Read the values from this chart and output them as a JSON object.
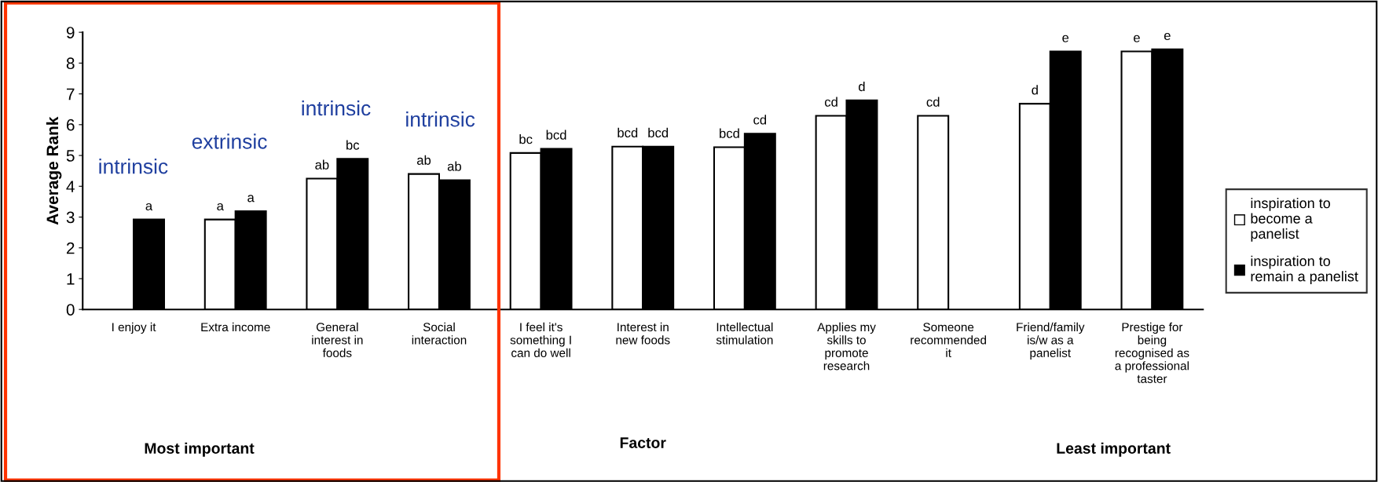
{
  "chart_data": {
    "type": "bar",
    "xlabel": "Factor",
    "ylabel": "Average Rank",
    "categories": [
      "I enjoy it",
      "Extra income",
      "General\ninterest in\nfoods",
      "Social\ninteraction",
      "I feel it's\nsomething I\ncan do well",
      "Interest in\nnew foods",
      "Intellectual\nstimulation",
      "Applies my\nskills to\npromote\nresearch",
      "Someone\nrecommended\nit",
      "Friend/family\nis/w as a\npanelist",
      "Prestige for\nbeing\nrecognised as\na professional\ntaster"
    ],
    "series": [
      {
        "name": "inspiration to\nbecome a\npanelist",
        "color": "#ffffff",
        "values": [
          null,
          2.92,
          4.25,
          4.4,
          5.08,
          5.29,
          5.27,
          6.29,
          6.29,
          6.68,
          8.38
        ],
        "value_labels": [
          null,
          "a",
          "ab",
          "ab",
          "bc",
          "bcd",
          "bcd",
          "cd",
          "cd",
          "d",
          "e"
        ]
      },
      {
        "name": "inspiration to\nremain a panelist",
        "color": "#000000",
        "values": [
          2.92,
          3.19,
          4.89,
          4.2,
          5.22,
          5.29,
          5.71,
          6.79,
          null,
          8.38,
          8.45
        ],
        "value_labels": [
          "a",
          "a",
          "bc",
          "ab",
          "bcd",
          "bcd",
          "cd",
          "d",
          null,
          "e",
          "e"
        ]
      }
    ],
    "ylim": [
      0,
      9
    ],
    "yticks": [
      0,
      1,
      2,
      3,
      4,
      5,
      6,
      7,
      8,
      9
    ],
    "grid": false,
    "legend": "right",
    "annotations": [
      "intrinsic",
      "extrinsic",
      "intrinsic",
      "intrinsic",
      "Most important",
      "Least important"
    ]
  }
}
